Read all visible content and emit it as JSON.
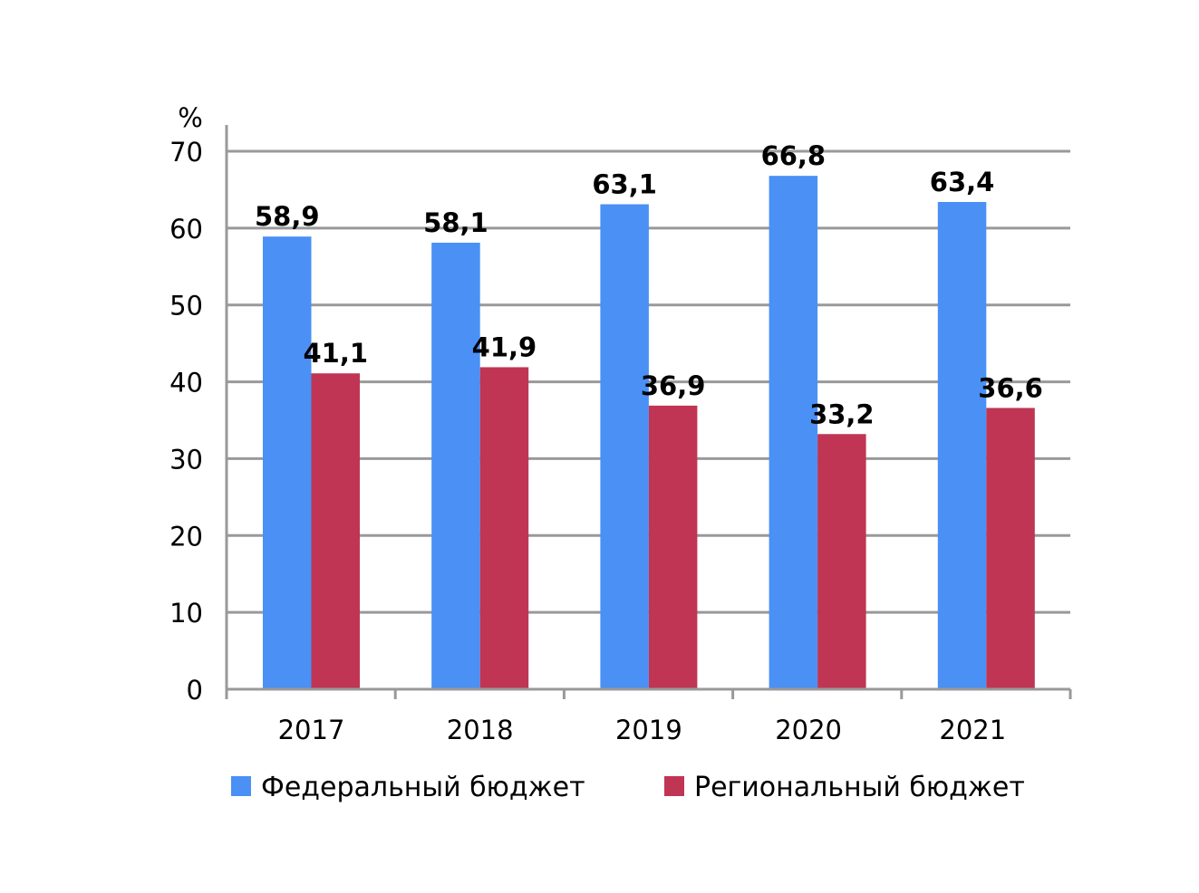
{
  "chart_data": {
    "type": "bar",
    "title": "",
    "ylabel": "%",
    "xlabel": "",
    "ylim": [
      0,
      70
    ],
    "yticks": [
      0,
      10,
      20,
      30,
      40,
      50,
      60,
      70
    ],
    "grid": true,
    "legend_position": "bottom",
    "categories": [
      "2017",
      "2018",
      "2019",
      "2020",
      "2021"
    ],
    "series": [
      {
        "name": "Федеральный бюджет",
        "color": "#4a90f5",
        "values": [
          58.9,
          58.1,
          63.1,
          66.8,
          63.4
        ],
        "labels": [
          "58,9",
          "58,1",
          "63,1",
          "66,8",
          "63,4"
        ]
      },
      {
        "name": "Региональный бюджет",
        "color": "#c03553",
        "values": [
          41.1,
          41.9,
          36.9,
          33.2,
          36.6
        ],
        "labels": [
          "41,1",
          "41,9",
          "36,9",
          "33,2",
          "36,6"
        ]
      }
    ]
  }
}
